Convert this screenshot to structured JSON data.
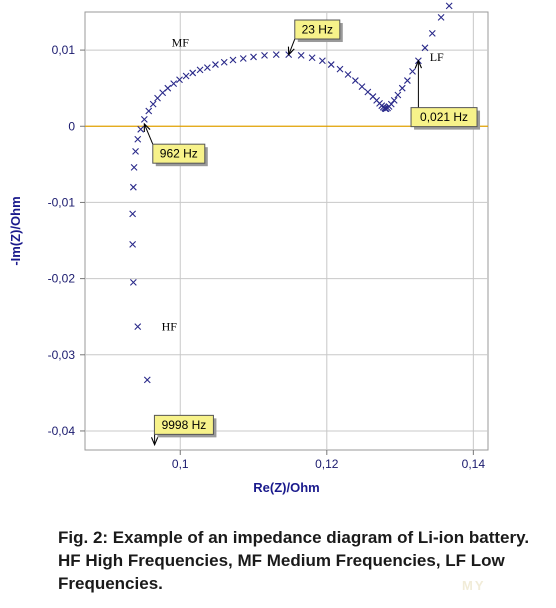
{
  "chart_data": {
    "type": "scatter",
    "xlabel": "Re(Z)/Ohm",
    "ylabel": "-Im(Z)/Ohm",
    "xlim": [
      0.087,
      0.142
    ],
    "ylim": [
      -0.0425,
      0.015
    ],
    "xticks": [
      0.1,
      0.12,
      0.14
    ],
    "xtick_labels": [
      "0,1",
      "0,12",
      "0,14"
    ],
    "yticks": [
      0.01,
      0,
      -0.01,
      -0.02,
      -0.03,
      -0.04
    ],
    "ytick_labels": [
      "0,01",
      "0",
      "-0,01",
      "-0,02",
      "-0,03",
      "-0,04"
    ],
    "grid": true,
    "zero_line_color": "#e0a000",
    "marker_color": "#2a2a8a",
    "marker": "x",
    "points": [
      [
        0.0955,
        -0.0333
      ],
      [
        0.0942,
        -0.0263
      ],
      [
        0.0936,
        -0.0205
      ],
      [
        0.0935,
        -0.0155
      ],
      [
        0.0935,
        -0.0115
      ],
      [
        0.0936,
        -0.008
      ],
      [
        0.0937,
        -0.0054
      ],
      [
        0.0939,
        -0.0033
      ],
      [
        0.0942,
        -0.0017
      ],
      [
        0.0946,
        -0.0004
      ],
      [
        0.0951,
        0.0009
      ],
      [
        0.0957,
        0.002
      ],
      [
        0.0963,
        0.0029
      ],
      [
        0.0969,
        0.0037
      ],
      [
        0.0976,
        0.0044
      ],
      [
        0.0983,
        0.005
      ],
      [
        0.0991,
        0.0056
      ],
      [
        0.0999,
        0.0061
      ],
      [
        0.1008,
        0.0066
      ],
      [
        0.1017,
        0.007
      ],
      [
        0.1027,
        0.0074
      ],
      [
        0.1037,
        0.0077
      ],
      [
        0.1048,
        0.0081
      ],
      [
        0.106,
        0.0084
      ],
      [
        0.1072,
        0.0087
      ],
      [
        0.1086,
        0.0089
      ],
      [
        0.11,
        0.0091
      ],
      [
        0.1115,
        0.0093
      ],
      [
        0.1131,
        0.0094
      ],
      [
        0.1148,
        0.0094
      ],
      [
        0.1165,
        0.0093
      ],
      [
        0.118,
        0.009
      ],
      [
        0.1194,
        0.0086
      ],
      [
        0.1206,
        0.0081
      ],
      [
        0.1218,
        0.0075
      ],
      [
        0.1229,
        0.0068
      ],
      [
        0.1239,
        0.006
      ],
      [
        0.1248,
        0.0052
      ],
      [
        0.1256,
        0.0045
      ],
      [
        0.1263,
        0.0039
      ],
      [
        0.1268,
        0.0034
      ],
      [
        0.1272,
        0.003
      ],
      [
        0.1275,
        0.0027
      ],
      [
        0.1277,
        0.0025
      ],
      [
        0.1279,
        0.0024
      ],
      [
        0.128,
        0.0023
      ],
      [
        0.1281,
        0.0023
      ],
      [
        0.1283,
        0.0024
      ],
      [
        0.1285,
        0.0026
      ],
      [
        0.1288,
        0.0029
      ],
      [
        0.1292,
        0.0034
      ],
      [
        0.1297,
        0.0041
      ],
      [
        0.1303,
        0.005
      ],
      [
        0.131,
        0.006
      ],
      [
        0.1317,
        0.0072
      ],
      [
        0.1325,
        0.0086
      ],
      [
        0.1334,
        0.0103
      ],
      [
        0.1344,
        0.0122
      ],
      [
        0.1356,
        0.0143
      ],
      [
        0.1367,
        0.0158
      ]
    ],
    "region_labels": [
      {
        "text": "MF",
        "x": 0.1,
        "y": 0.0105
      },
      {
        "text": "LF",
        "x": 0.135,
        "y": 0.0086
      },
      {
        "text": "HF",
        "x": 0.0985,
        "y": -0.0268
      }
    ],
    "annotations": [
      {
        "text": "23 Hz",
        "point": [
          0.1148,
          0.0094
        ],
        "box": [
          0.1187,
          0.0127
        ]
      },
      {
        "text": "0,021 Hz",
        "point": [
          0.1325,
          0.0086
        ],
        "box": [
          0.136,
          0.0012
        ]
      },
      {
        "text": "962 Hz",
        "point": [
          0.0951,
          0.0003
        ],
        "box": [
          0.0998,
          -0.0036
        ]
      },
      {
        "text": "9998 Hz",
        "point": [
          0.0965,
          -0.0418
        ],
        "box": [
          0.1005,
          -0.0392
        ]
      }
    ]
  },
  "caption": "Fig. 2: Example of an impedance diagram of Li-ion battery.  HF High Frequencies, MF Medium Frequencies, LF Low Frequencies.",
  "watermark": "MY"
}
